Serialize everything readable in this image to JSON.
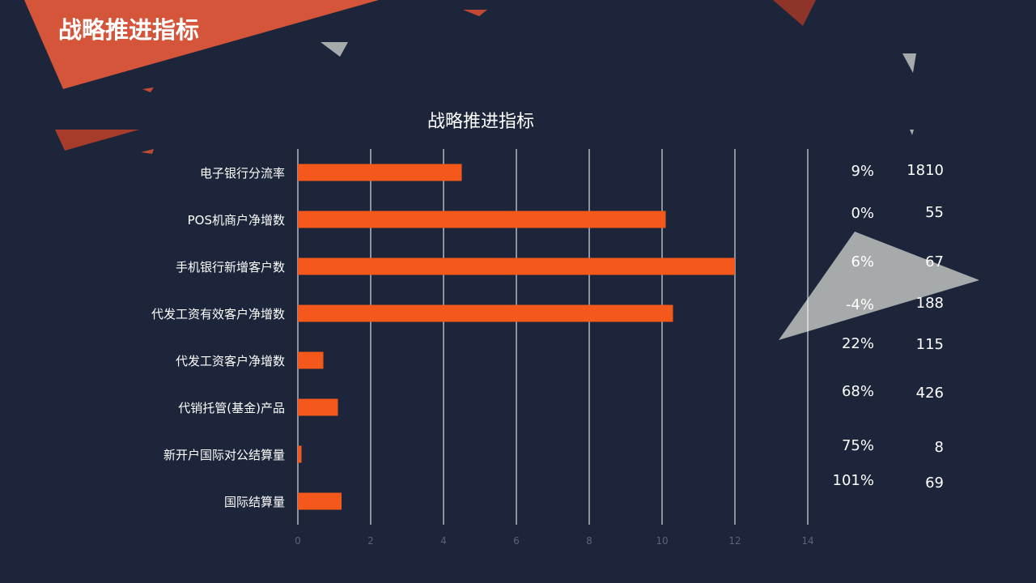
{
  "slide": {
    "title": "战略推进指标"
  },
  "colors": {
    "background": "#1c2539",
    "bar": "#f4591b",
    "accent_shape": "#d4553a",
    "grid": "#ffffff",
    "tick": "#5b6378",
    "text": "#ffffff",
    "grey_shape": "#a6aaab"
  },
  "chart_data": {
    "type": "bar",
    "orientation": "horizontal",
    "title": "战略推进指标",
    "categories": [
      "电子银行分流率",
      "POS机商户净增数",
      "手机银行新增客户数",
      "代发工资有效客户净增数",
      "代发工资客户净增数",
      "代销托管(基金)产品",
      "新开户国际对公结算量",
      "国际结算量"
    ],
    "values": [
      4.5,
      10.1,
      12,
      10.3,
      0.7,
      1.1,
      0.1,
      1.2
    ],
    "xlim": [
      0,
      14
    ],
    "xticks": [
      0,
      2,
      4,
      6,
      8,
      10,
      12,
      14
    ],
    "grid": true,
    "legend": "none"
  },
  "side_values": {
    "percentages": [
      "9%",
      "0%",
      "6%",
      "-4%",
      "22%",
      "68%",
      "75%",
      "101%"
    ],
    "counts": [
      "1810",
      "55",
      "67",
      "188",
      "115",
      "426",
      "8",
      "69"
    ]
  }
}
